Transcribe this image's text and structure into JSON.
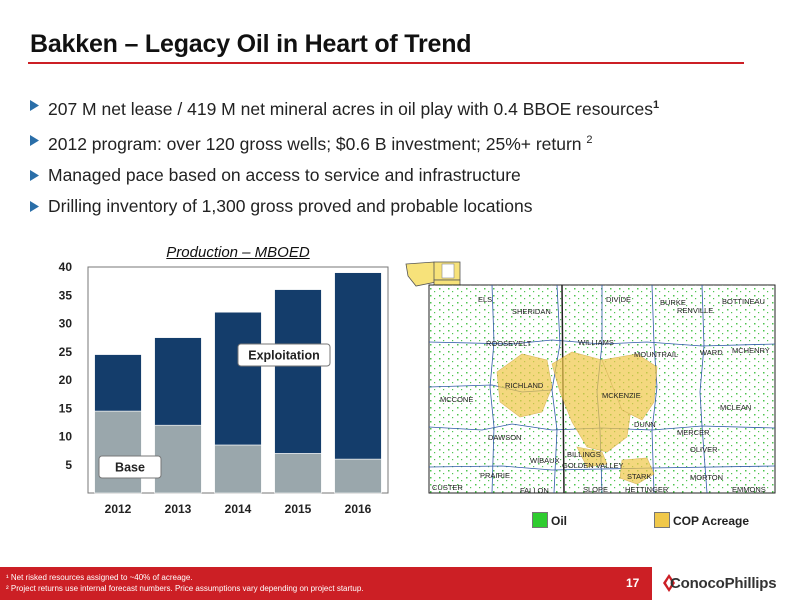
{
  "slide": {
    "title": "Bakken – Legacy Oil in Heart of Trend",
    "page_number": "17",
    "company": "ConocoPhillips"
  },
  "bullets": [
    {
      "text": "207 M net lease / 419 M net mineral acres in oil play with 0.4 BBOE resources",
      "sup": "1"
    },
    {
      "text": "2012 program: over 120 gross wells; $0.6 B investment; 25%+ return ",
      "sup": "2"
    },
    {
      "text": "Managed pace based on access to service and infrastructure",
      "sup": ""
    },
    {
      "text": "Drilling inventory of 1,300 gross proved and probable locations",
      "sup": ""
    }
  ],
  "footnotes": [
    "¹ Net risked resources assigned to ~40% of acreage.",
    "² Project returns use internal forecast numbers. Price assumptions vary depending on project startup."
  ],
  "chart_data": {
    "type": "bar",
    "stacked": true,
    "title": "Production – MBOED",
    "categories": [
      "2012",
      "2013",
      "2014",
      "2015",
      "2016"
    ],
    "series": [
      {
        "name": "Base",
        "values": [
          14.5,
          12,
          8.5,
          7,
          6
        ],
        "color": "#9aa7ac"
      },
      {
        "name": "Exploitation",
        "values": [
          10,
          15.5,
          23.5,
          29,
          33
        ],
        "color": "#143d6b"
      }
    ],
    "yticks": [
      5,
      10,
      15,
      20,
      25,
      30,
      35,
      40
    ],
    "ylim": [
      0,
      40
    ],
    "grid": false
  },
  "map": {
    "counties": [
      "ELS",
      "SHERIDAN",
      "DIVIDE",
      "BURKE",
      "RENVILLE",
      "BOTTINEAU",
      "ROOSEVELT",
      "WILLIAMS",
      "MOUNTRAIL",
      "WARD",
      "MCHENRY",
      "RICHLAND",
      "MCKENZIE",
      "MCCONE",
      "MCLEAN",
      "DUNN",
      "DAWSON",
      "MERCER",
      "OLIVER",
      "WIBAUX",
      "GOLDEN VALLEY",
      "BILLINGS",
      "PRAIRIE",
      "STARK",
      "MORTON",
      "CUSTER",
      "FALLON",
      "SLOPE",
      "HETTINGER",
      "EMMONS"
    ],
    "legend": [
      {
        "label": "Oil",
        "color": "#2ecc2e"
      },
      {
        "label": "COP Acreage",
        "color": "#f0c84a"
      }
    ]
  }
}
